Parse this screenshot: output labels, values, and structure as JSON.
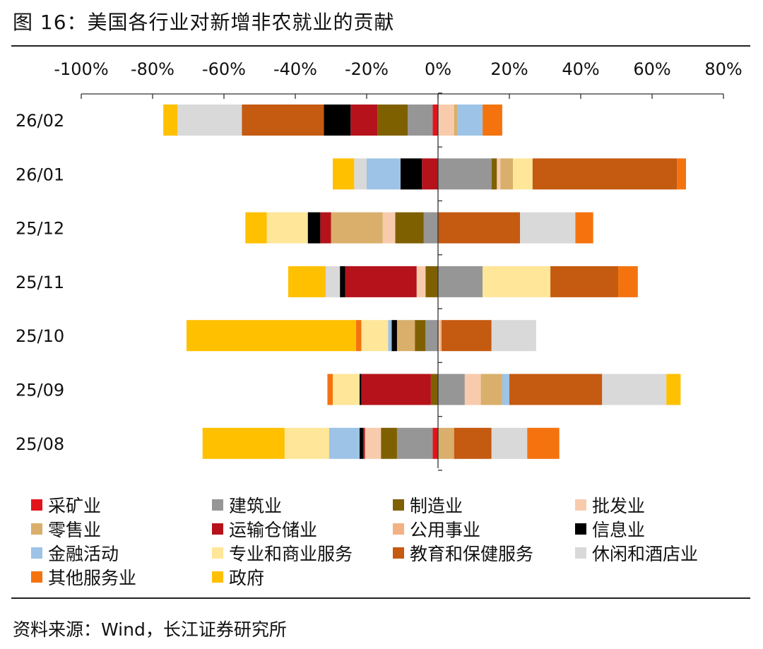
{
  "header": {
    "title": "图 16：美国各行业对新增非农就业的贡献"
  },
  "footer": {
    "source": "资料来源：Wind，长江证券研究所"
  },
  "chart_data": {
    "type": "bar",
    "orientation": "horizontal",
    "stacked": "diverging",
    "title": "",
    "xlabel": "",
    "ylabel": "",
    "xlim": [
      -100,
      80
    ],
    "x_tick_labels": [
      "-100%",
      "-80%",
      "-60%",
      "-40%",
      "-20%",
      "0%",
      "20%",
      "40%",
      "60%",
      "80%"
    ],
    "x_tick_values": [
      -100,
      -80,
      -60,
      -40,
      -20,
      0,
      20,
      40,
      60,
      80
    ],
    "categories": [
      "26/02",
      "26/01",
      "25/12",
      "25/11",
      "25/10",
      "25/09",
      "25/08"
    ],
    "legend_position": "bottom",
    "series": [
      {
        "name": "采矿业",
        "color": "#E2141B",
        "values": [
          -1.5,
          0,
          0,
          0,
          0,
          0,
          -1.5
        ]
      },
      {
        "name": "建筑业",
        "color": "#969696",
        "values": [
          -7,
          15,
          -4,
          12.5,
          -3.5,
          7.5,
          -10
        ]
      },
      {
        "name": "制造业",
        "color": "#7F6000",
        "values": [
          -8.5,
          1.5,
          -8,
          -3.5,
          -3,
          -2,
          -4.5
        ]
      },
      {
        "name": "批发业",
        "color": "#F8CBAD",
        "values": [
          4.5,
          1,
          -3.5,
          -2.5,
          0.5,
          4.5,
          -4.5
        ]
      },
      {
        "name": "零售业",
        "color": "#D9AF6B",
        "values": [
          1,
          3.5,
          -14.5,
          0,
          -5,
          6,
          4.5
        ]
      },
      {
        "name": "运输仓储业",
        "color": "#B5121B",
        "values": [
          -7.5,
          -4.5,
          -3,
          -20,
          0,
          -19.5,
          -0.5
        ]
      },
      {
        "name": "公用事业",
        "color": "#F4B183",
        "values": [
          0,
          0,
          0,
          0,
          0.5,
          0,
          0
        ]
      },
      {
        "name": "信息业",
        "color": "#000000",
        "values": [
          -7.5,
          -6,
          -3.5,
          -1.5,
          -1.5,
          -0.5,
          -1
        ]
      },
      {
        "name": "金融活动",
        "color": "#9DC3E6",
        "values": [
          7,
          -9.5,
          0,
          0,
          -1,
          2,
          -8.5
        ]
      },
      {
        "name": "专业和商业服务",
        "color": "#FFE699",
        "values": [
          0,
          5.5,
          -11.5,
          19,
          -7.5,
          -7.5,
          -12.5
        ]
      },
      {
        "name": "教育和保健服务",
        "color": "#C55A11",
        "values": [
          -23,
          40.5,
          23,
          19,
          14,
          26,
          10.5
        ]
      },
      {
        "name": "休闲和酒店业",
        "color": "#D9D9D9",
        "values": [
          -18,
          -3.5,
          15.5,
          -4,
          12.5,
          18,
          10
        ]
      },
      {
        "name": "其他服务业",
        "color": "#F4730F",
        "values": [
          5.5,
          2.5,
          5,
          5.5,
          -1.5,
          -1.5,
          9
        ]
      },
      {
        "name": "政府",
        "color": "#FFC000",
        "values": [
          -4,
          -6,
          -6,
          -10.5,
          -47.5,
          4,
          -23
        ]
      }
    ]
  }
}
